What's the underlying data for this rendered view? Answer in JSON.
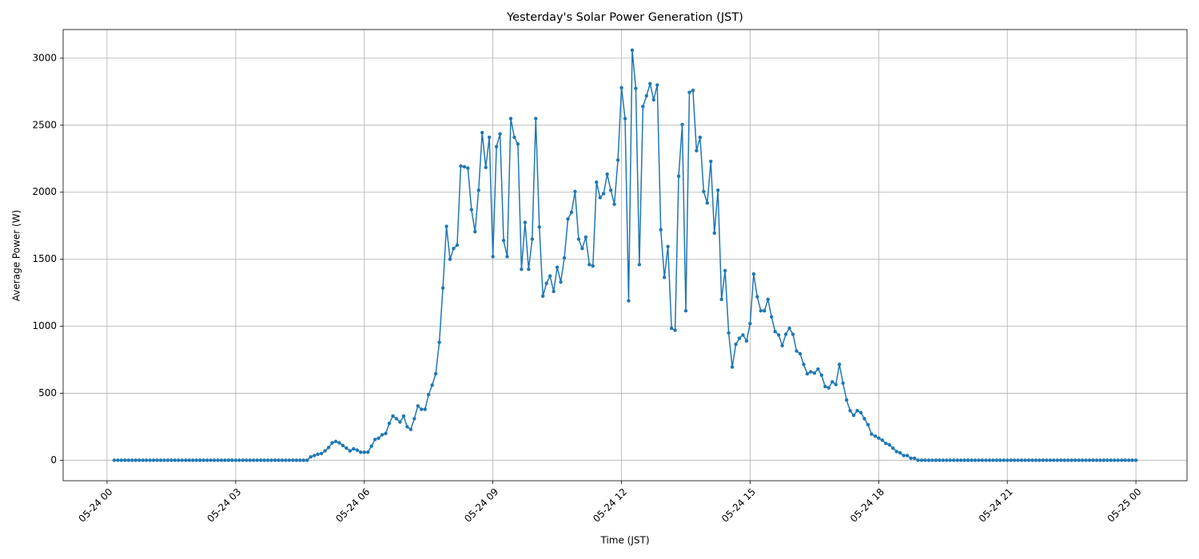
{
  "chart_data": {
    "type": "line",
    "title": "Yesterday's Solar Power Generation (JST)",
    "x_label": "Time (JST)",
    "y_label": "Average Power (W)",
    "grid": true,
    "markers": true,
    "x": [
      "05-24 00:10",
      "05-24 00:15",
      "05-24 00:20",
      "05-24 00:25",
      "05-24 00:30",
      "05-24 00:35",
      "05-24 00:40",
      "05-24 00:45",
      "05-24 00:50",
      "05-24 00:55",
      "05-24 01:00",
      "05-24 01:05",
      "05-24 01:10",
      "05-24 01:15",
      "05-24 01:20",
      "05-24 01:25",
      "05-24 01:30",
      "05-24 01:35",
      "05-24 01:40",
      "05-24 01:45",
      "05-24 01:50",
      "05-24 01:55",
      "05-24 02:00",
      "05-24 02:05",
      "05-24 02:10",
      "05-24 02:15",
      "05-24 02:20",
      "05-24 02:25",
      "05-24 02:30",
      "05-24 02:35",
      "05-24 02:40",
      "05-24 02:45",
      "05-24 02:50",
      "05-24 02:55",
      "05-24 03:00",
      "05-24 03:05",
      "05-24 03:10",
      "05-24 03:15",
      "05-24 03:20",
      "05-24 03:25",
      "05-24 03:30",
      "05-24 03:35",
      "05-24 03:40",
      "05-24 03:45",
      "05-24 03:50",
      "05-24 03:55",
      "05-24 04:00",
      "05-24 04:05",
      "05-24 04:10",
      "05-24 04:15",
      "05-24 04:20",
      "05-24 04:25",
      "05-24 04:30",
      "05-24 04:35",
      "05-24 04:40",
      "05-24 04:45",
      "05-24 04:50",
      "05-24 04:55",
      "05-24 05:00",
      "05-24 05:05",
      "05-24 05:10",
      "05-24 05:15",
      "05-24 05:20",
      "05-24 05:25",
      "05-24 05:30",
      "05-24 05:35",
      "05-24 05:40",
      "05-24 05:45",
      "05-24 05:50",
      "05-24 05:55",
      "05-24 06:00",
      "05-24 06:05",
      "05-24 06:10",
      "05-24 06:15",
      "05-24 06:20",
      "05-24 06:25",
      "05-24 06:30",
      "05-24 06:35",
      "05-24 06:40",
      "05-24 06:45",
      "05-24 06:50",
      "05-24 06:55",
      "05-24 07:00",
      "05-24 07:05",
      "05-24 07:10",
      "05-24 07:15",
      "05-24 07:20",
      "05-24 07:25",
      "05-24 07:30",
      "05-24 07:35",
      "05-24 07:40",
      "05-24 07:45",
      "05-24 07:50",
      "05-24 07:55",
      "05-24 08:00",
      "05-24 08:05",
      "05-24 08:10",
      "05-24 08:15",
      "05-24 08:20",
      "05-24 08:25",
      "05-24 08:30",
      "05-24 08:35",
      "05-24 08:40",
      "05-24 08:45",
      "05-24 08:50",
      "05-24 08:55",
      "05-24 09:00",
      "05-24 09:05",
      "05-24 09:10",
      "05-24 09:15",
      "05-24 09:20",
      "05-24 09:25",
      "05-24 09:30",
      "05-24 09:35",
      "05-24 09:40",
      "05-24 09:45",
      "05-24 09:50",
      "05-24 09:55",
      "05-24 10:00",
      "05-24 10:05",
      "05-24 10:10",
      "05-24 10:15",
      "05-24 10:20",
      "05-24 10:25",
      "05-24 10:30",
      "05-24 10:35",
      "05-24 10:40",
      "05-24 10:45",
      "05-24 10:50",
      "05-24 10:55",
      "05-24 11:00",
      "05-24 11:05",
      "05-24 11:10",
      "05-24 11:15",
      "05-24 11:20",
      "05-24 11:25",
      "05-24 11:30",
      "05-24 11:35",
      "05-24 11:40",
      "05-24 11:45",
      "05-24 11:50",
      "05-24 11:55",
      "05-24 12:00",
      "05-24 12:05",
      "05-24 12:10",
      "05-24 12:15",
      "05-24 12:20",
      "05-24 12:25",
      "05-24 12:30",
      "05-24 12:35",
      "05-24 12:40",
      "05-24 12:45",
      "05-24 12:50",
      "05-24 12:55",
      "05-24 13:00",
      "05-24 13:05",
      "05-24 13:10",
      "05-24 13:15",
      "05-24 13:20",
      "05-24 13:25",
      "05-24 13:30",
      "05-24 13:35",
      "05-24 13:40",
      "05-24 13:45",
      "05-24 13:50",
      "05-24 13:55",
      "05-24 14:00",
      "05-24 14:05",
      "05-24 14:10",
      "05-24 14:15",
      "05-24 14:20",
      "05-24 14:25",
      "05-24 14:30",
      "05-24 14:35",
      "05-24 14:40",
      "05-24 14:45",
      "05-24 14:50",
      "05-24 14:55",
      "05-24 15:00",
      "05-24 15:05",
      "05-24 15:10",
      "05-24 15:15",
      "05-24 15:20",
      "05-24 15:25",
      "05-24 15:30",
      "05-24 15:35",
      "05-24 15:40",
      "05-24 15:45",
      "05-24 15:50",
      "05-24 15:55",
      "05-24 16:00",
      "05-24 16:05",
      "05-24 16:10",
      "05-24 16:15",
      "05-24 16:20",
      "05-24 16:25",
      "05-24 16:30",
      "05-24 16:35",
      "05-24 16:40",
      "05-24 16:45",
      "05-24 16:50",
      "05-24 16:55",
      "05-24 17:00",
      "05-24 17:05",
      "05-24 17:10",
      "05-24 17:15",
      "05-24 17:20",
      "05-24 17:25",
      "05-24 17:30",
      "05-24 17:35",
      "05-24 17:40",
      "05-24 17:45",
      "05-24 17:50",
      "05-24 17:55",
      "05-24 18:00",
      "05-24 18:05",
      "05-24 18:10",
      "05-24 18:15",
      "05-24 18:20",
      "05-24 18:25",
      "05-24 18:30",
      "05-24 18:35",
      "05-24 18:40",
      "05-24 18:45",
      "05-24 18:50",
      "05-24 18:55",
      "05-24 19:00",
      "05-24 19:05",
      "05-24 19:10",
      "05-24 19:15",
      "05-24 19:20",
      "05-24 19:25",
      "05-24 19:30",
      "05-24 19:35",
      "05-24 19:40",
      "05-24 19:45",
      "05-24 19:50",
      "05-24 19:55",
      "05-24 20:00",
      "05-24 20:05",
      "05-24 20:10",
      "05-24 20:15",
      "05-24 20:20",
      "05-24 20:25",
      "05-24 20:30",
      "05-24 20:35",
      "05-24 20:40",
      "05-24 20:45",
      "05-24 20:50",
      "05-24 20:55",
      "05-24 21:00",
      "05-24 21:05",
      "05-24 21:10",
      "05-24 21:15",
      "05-24 21:20",
      "05-24 21:25",
      "05-24 21:30",
      "05-24 21:35",
      "05-24 21:40",
      "05-24 21:45",
      "05-24 21:50",
      "05-24 21:55",
      "05-24 22:00",
      "05-24 22:05",
      "05-24 22:10",
      "05-24 22:15",
      "05-24 22:20",
      "05-24 22:25",
      "05-24 22:30",
      "05-24 22:35",
      "05-24 22:40",
      "05-24 22:45",
      "05-24 22:50",
      "05-24 22:55",
      "05-24 23:00",
      "05-24 23:05",
      "05-24 23:10",
      "05-24 23:15",
      "05-24 23:20",
      "05-24 23:25",
      "05-24 23:30",
      "05-24 23:35",
      "05-24 23:40",
      "05-24 23:45",
      "05-24 23:50",
      "05-24 23:55",
      "05-25 00:00"
    ],
    "series": [
      {
        "color": "#1f77b4",
        "values": [
          0,
          0,
          0,
          0,
          0,
          0,
          0,
          0,
          0,
          0,
          0,
          0,
          0,
          0,
          0,
          0,
          0,
          0,
          0,
          0,
          0,
          0,
          0,
          0,
          0,
          0,
          0,
          0,
          0,
          0,
          0,
          0,
          0,
          0,
          0,
          0,
          0,
          0,
          0,
          0,
          0,
          0,
          0,
          0,
          0,
          0,
          0,
          0,
          0,
          0,
          0,
          0,
          0,
          0,
          0,
          25,
          35,
          45,
          50,
          70,
          95,
          130,
          140,
          130,
          110,
          90,
          70,
          85,
          75,
          60,
          60,
          60,
          105,
          155,
          165,
          190,
          200,
          275,
          330,
          310,
          285,
          330,
          250,
          230,
          310,
          405,
          380,
          380,
          490,
          560,
          645,
          880,
          1285,
          1745,
          1500,
          1580,
          1605,
          2195,
          2190,
          2180,
          1870,
          1705,
          2015,
          2445,
          2185,
          2410,
          1520,
          2340,
          2435,
          1640,
          1520,
          2550,
          2410,
          2360,
          1425,
          1775,
          1425,
          1650,
          2550,
          1740,
          1225,
          1320,
          1375,
          1260,
          1440,
          1330,
          1510,
          1800,
          1850,
          2005,
          1650,
          1580,
          1665,
          1460,
          1450,
          2075,
          1960,
          1990,
          2135,
          2015,
          1910,
          2240,
          2780,
          2550,
          1190,
          3060,
          2775,
          1460,
          2640,
          2720,
          2810,
          2690,
          2800,
          1720,
          1365,
          1595,
          985,
          970,
          2120,
          2505,
          1115,
          2745,
          2760,
          2310,
          2410,
          2005,
          1920,
          2230,
          1695,
          2015,
          1200,
          1415,
          950,
          695,
          865,
          910,
          935,
          890,
          1020,
          1390,
          1220,
          1115,
          1115,
          1200,
          1070,
          960,
          935,
          855,
          940,
          985,
          940,
          815,
          795,
          715,
          645,
          660,
          650,
          680,
          635,
          550,
          540,
          585,
          565,
          715,
          575,
          450,
          370,
          335,
          370,
          355,
          310,
          265,
          195,
          180,
          165,
          150,
          125,
          115,
          90,
          65,
          55,
          35,
          35,
          15,
          15,
          0,
          0,
          0,
          0,
          0,
          0,
          0,
          0,
          0,
          0,
          0,
          0,
          0,
          0,
          0,
          0,
          0,
          0,
          0,
          0,
          0,
          0,
          0,
          0,
          0,
          0,
          0,
          0,
          0,
          0,
          0,
          0,
          0,
          0,
          0,
          0,
          0,
          0,
          0,
          0,
          0,
          0,
          0,
          0,
          0,
          0,
          0,
          0,
          0,
          0,
          0,
          0,
          0,
          0,
          0,
          0,
          0,
          0,
          0,
          0,
          0,
          0
        ]
      }
    ],
    "xlim": [
      "05-23 22:58:30",
      "05-25 01:11:30"
    ],
    "xticks": [
      {
        "value": "05-24 00:00",
        "label": "05-24 00"
      },
      {
        "value": "05-24 03:00",
        "label": "05-24 03"
      },
      {
        "value": "05-24 06:00",
        "label": "05-24 06"
      },
      {
        "value": "05-24 09:00",
        "label": "05-24 09"
      },
      {
        "value": "05-24 12:00",
        "label": "05-24 12"
      },
      {
        "value": "05-24 15:00",
        "label": "05-24 15"
      },
      {
        "value": "05-24 18:00",
        "label": "05-24 18"
      },
      {
        "value": "05-24 21:00",
        "label": "05-24 21"
      },
      {
        "value": "05-25 00:00",
        "label": "05-25 00"
      }
    ],
    "ylim": [
      -153,
      3214
    ],
    "yticks": [
      0,
      500,
      1000,
      1500,
      2000,
      2500,
      3000
    ]
  }
}
